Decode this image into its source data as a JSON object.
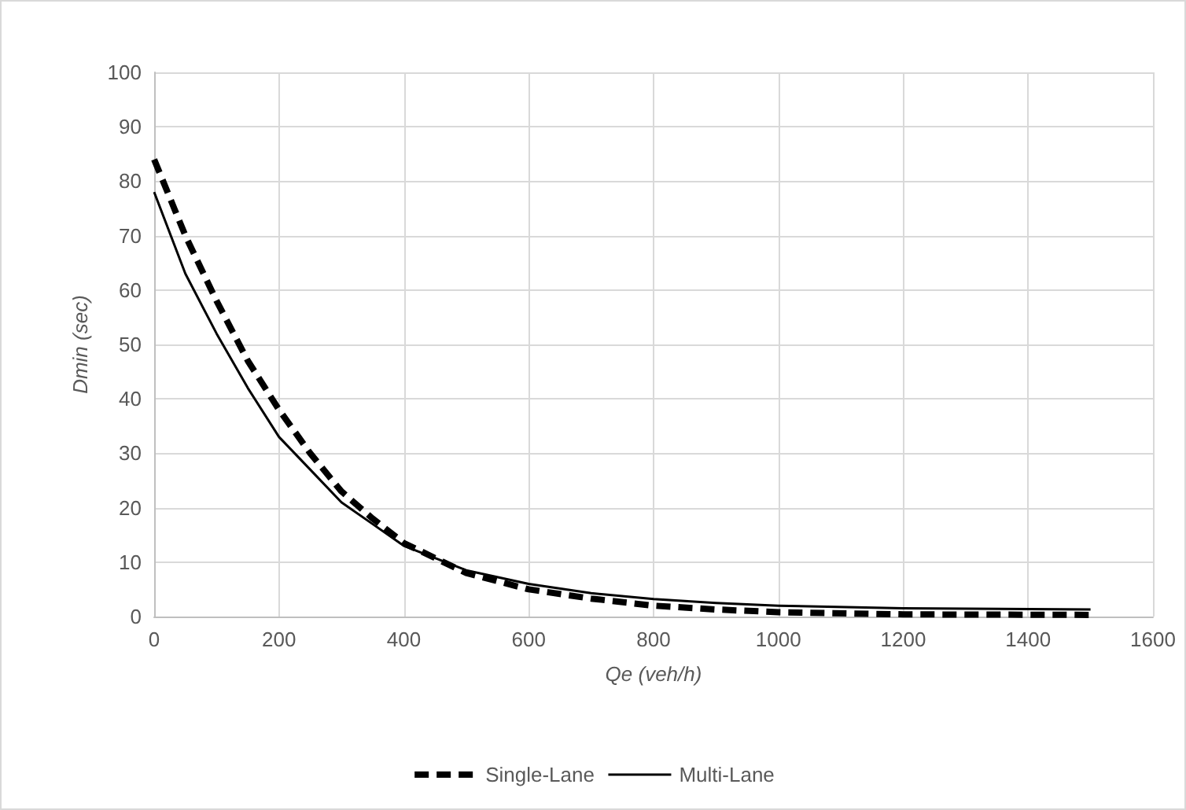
{
  "chart_data": {
    "type": "line",
    "xlabel": "Qe (veh/h)",
    "ylabel": "Dmin (sec)",
    "xlim": [
      0,
      1600
    ],
    "xticks": [
      0,
      200,
      400,
      600,
      800,
      1000,
      1200,
      1400,
      1600
    ],
    "ylim": [
      0,
      100
    ],
    "yticks": [
      0,
      10,
      20,
      30,
      40,
      50,
      60,
      70,
      80,
      90,
      100
    ],
    "grid": true,
    "legend": "bottom",
    "marker": "none",
    "series": [
      {
        "name": "Single-Lane",
        "color": "#000000",
        "line_style": "dashed",
        "x": [
          0,
          50,
          100,
          150,
          200,
          250,
          300,
          350,
          400,
          500,
          600,
          700,
          800,
          900,
          1000,
          1200,
          1500
        ],
        "values": [
          84,
          70,
          58,
          47,
          38,
          30,
          23,
          18,
          13.5,
          8,
          5,
          3.3,
          2,
          1.3,
          0.8,
          0.4,
          0.3
        ]
      },
      {
        "name": "Multi-Lane",
        "color": "#000000",
        "line_style": "solid",
        "x": [
          0,
          50,
          100,
          150,
          200,
          250,
          300,
          350,
          400,
          500,
          600,
          700,
          800,
          900,
          1000,
          1200,
          1500
        ],
        "values": [
          78,
          63,
          52,
          42,
          33,
          27,
          21,
          17,
          13,
          8.5,
          6,
          4.3,
          3.2,
          2.5,
          2,
          1.5,
          1.3
        ]
      }
    ]
  }
}
